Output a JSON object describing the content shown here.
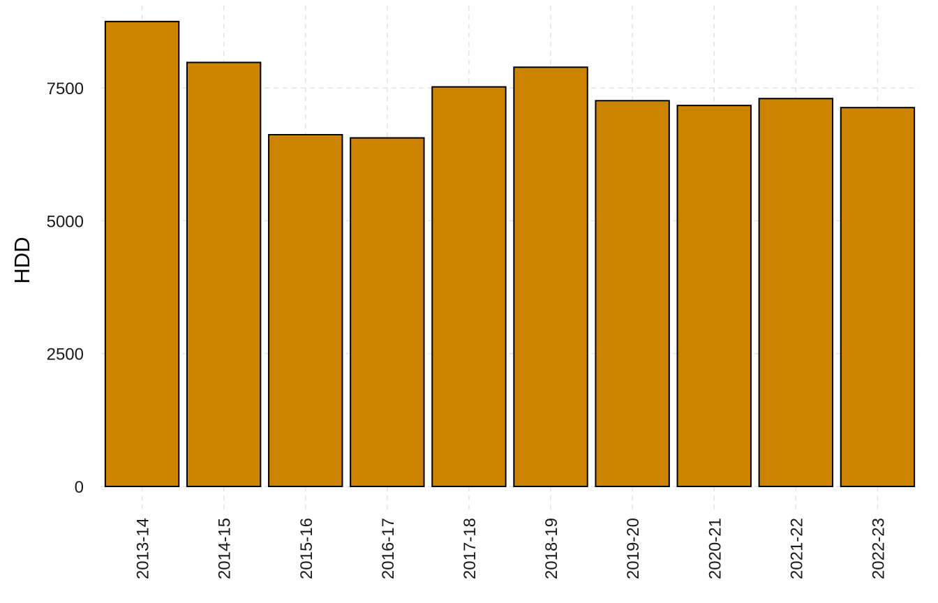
{
  "chart_data": {
    "type": "bar",
    "title": "",
    "xlabel": "",
    "ylabel": "HDD",
    "categories": [
      "2013-14",
      "2014-15",
      "2015-16",
      "2016-17",
      "2017-18",
      "2018-19",
      "2019-20",
      "2020-21",
      "2021-22",
      "2022-23"
    ],
    "values": [
      8750,
      7980,
      6620,
      6560,
      7520,
      7890,
      7260,
      7170,
      7300,
      7130
    ],
    "ylim": [
      0,
      9050
    ],
    "yticks": [
      0,
      2500,
      5000,
      7500
    ],
    "ytick_labels": [
      "0",
      "2500",
      "5000",
      "7500"
    ],
    "grid": true,
    "legend": "none",
    "bar_color": "#CC8400",
    "bar_outline": "#000000"
  }
}
